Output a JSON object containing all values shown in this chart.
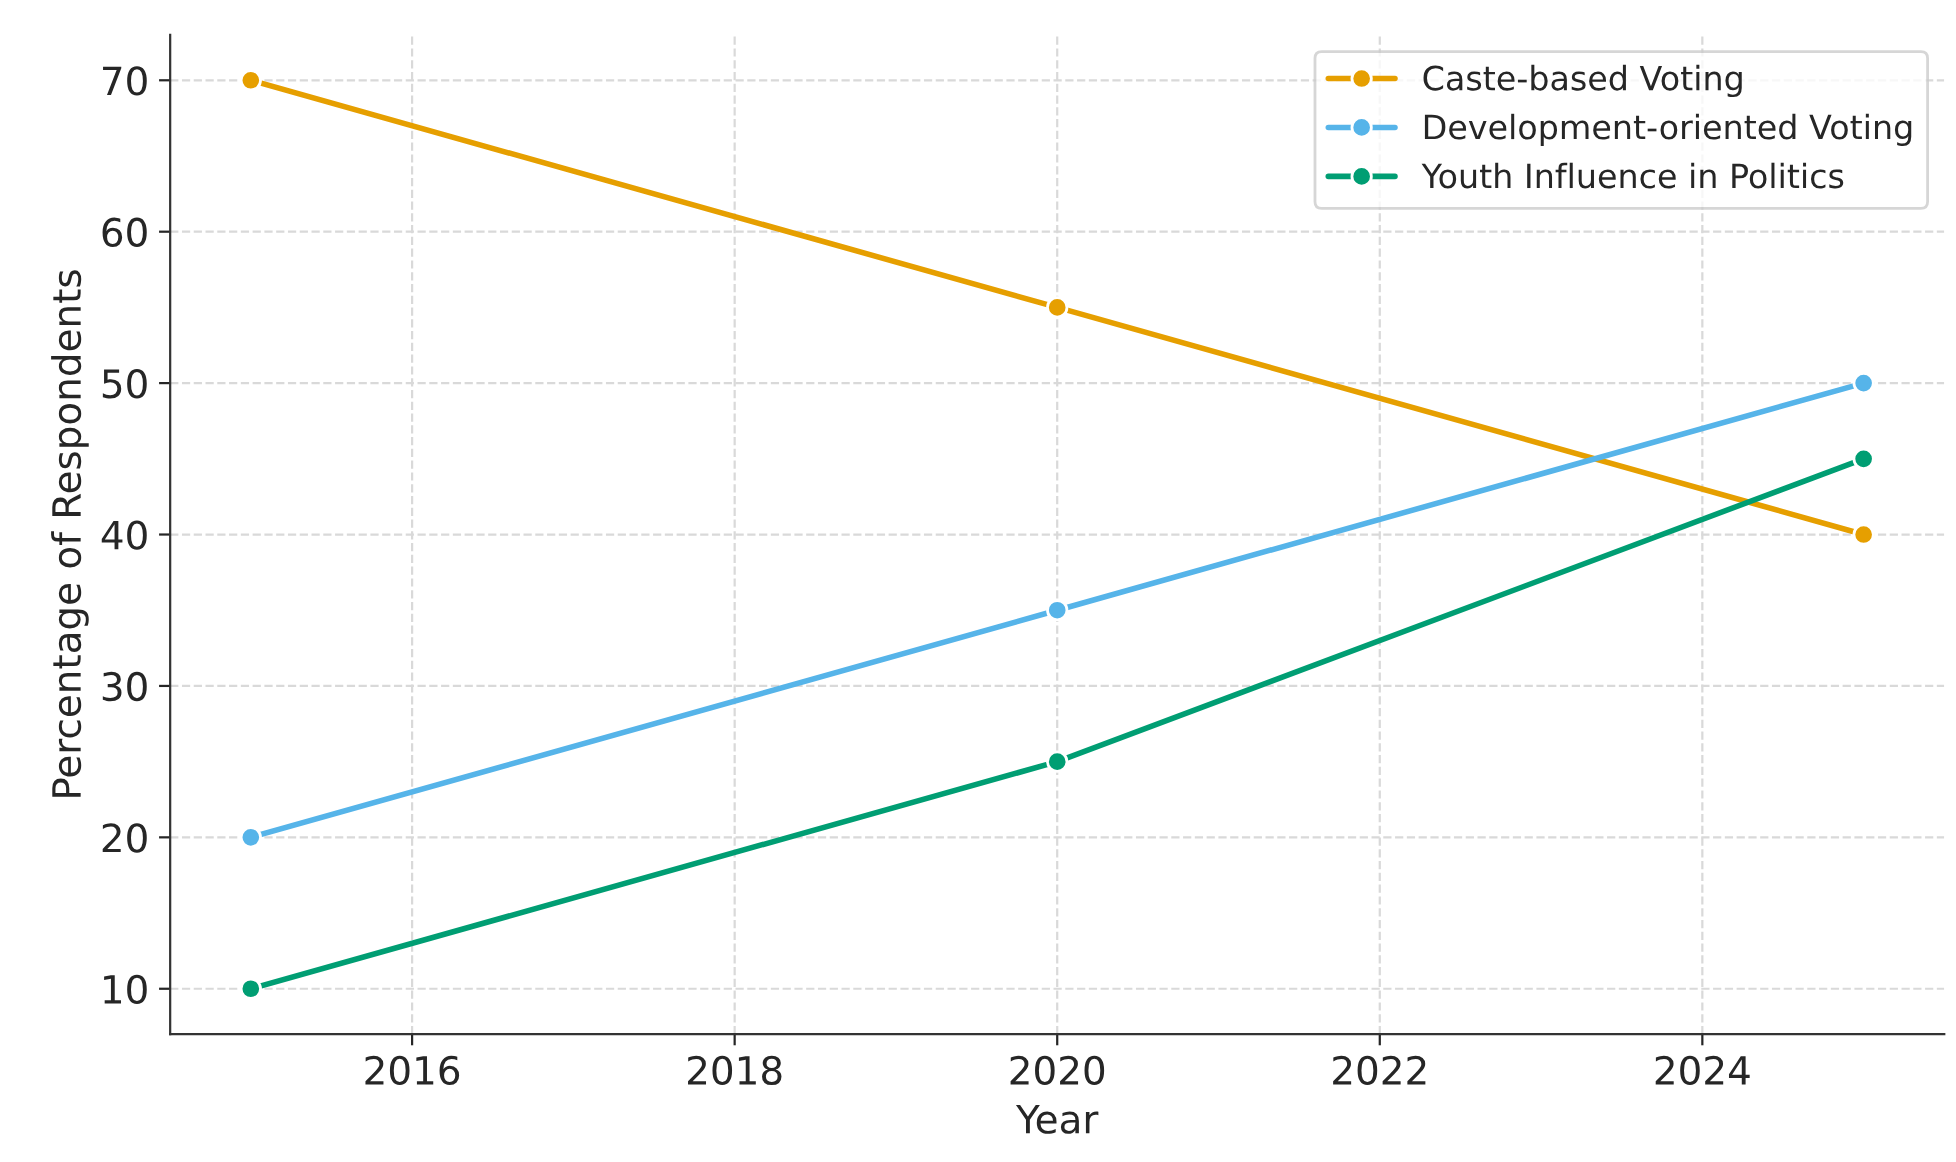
{
  "chart_data": {
    "type": "line",
    "xlabel": "Year",
    "ylabel": "Percentage of Respondents",
    "x": [
      2015,
      2020,
      2025
    ],
    "series": [
      {
        "name": "Caste-based Voting",
        "color": "#e69f00",
        "values": [
          70,
          55,
          40
        ]
      },
      {
        "name": "Development-oriented Voting",
        "color": "#56b4e9",
        "values": [
          20,
          35,
          50
        ]
      },
      {
        "name": "Youth Influence in Politics",
        "color": "#009e73",
        "values": [
          10,
          25,
          45
        ]
      }
    ],
    "xlim": [
      2014.5,
      2025.5
    ],
    "xticks": [
      2016,
      2018,
      2020,
      2022,
      2024
    ],
    "ylim": [
      7,
      73
    ],
    "yticks": [
      10,
      20,
      30,
      40,
      50,
      60,
      70
    ],
    "grid": true,
    "legend": "top right",
    "marker": "circle",
    "line_style": "solid"
  }
}
